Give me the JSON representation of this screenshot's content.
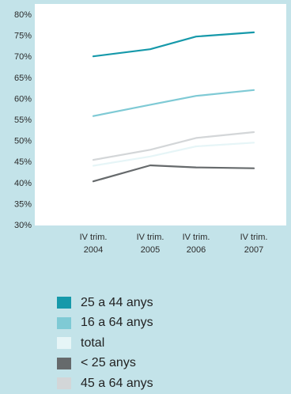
{
  "chart_data": {
    "type": "line",
    "categories": [
      [
        "IV trim.",
        "2004"
      ],
      [
        "IV trim.",
        "2005"
      ],
      [
        "IV trim.",
        "2006"
      ],
      [
        "IV trim.",
        "2007"
      ]
    ],
    "ylim": [
      30,
      80
    ],
    "yticks": [
      "30%",
      "35%",
      "40%",
      "45%",
      "50%",
      "55%",
      "60%",
      "65%",
      "70%",
      "75%",
      "80%"
    ],
    "series": [
      {
        "name": "25 a 44 anys",
        "color": "#1699aa",
        "values": [
          70.0,
          71.7,
          74.7,
          75.7
        ]
      },
      {
        "name": "16 a 64 anys",
        "color": "#7fcad5",
        "values": [
          55.8,
          58.5,
          60.6,
          62.0
        ]
      },
      {
        "name": "total",
        "color": "#e6f5f7",
        "values": [
          44.0,
          46.2,
          48.6,
          49.5
        ]
      },
      {
        "name": "< 25 anys",
        "color": "#666a6c",
        "values": [
          40.3,
          44.1,
          43.6,
          43.4
        ]
      },
      {
        "name": "45 a 64 anys",
        "color": "#d3d6d8",
        "values": [
          45.4,
          47.8,
          50.6,
          52.0
        ]
      }
    ],
    "grid": false,
    "legend_position": "bottom-left"
  }
}
